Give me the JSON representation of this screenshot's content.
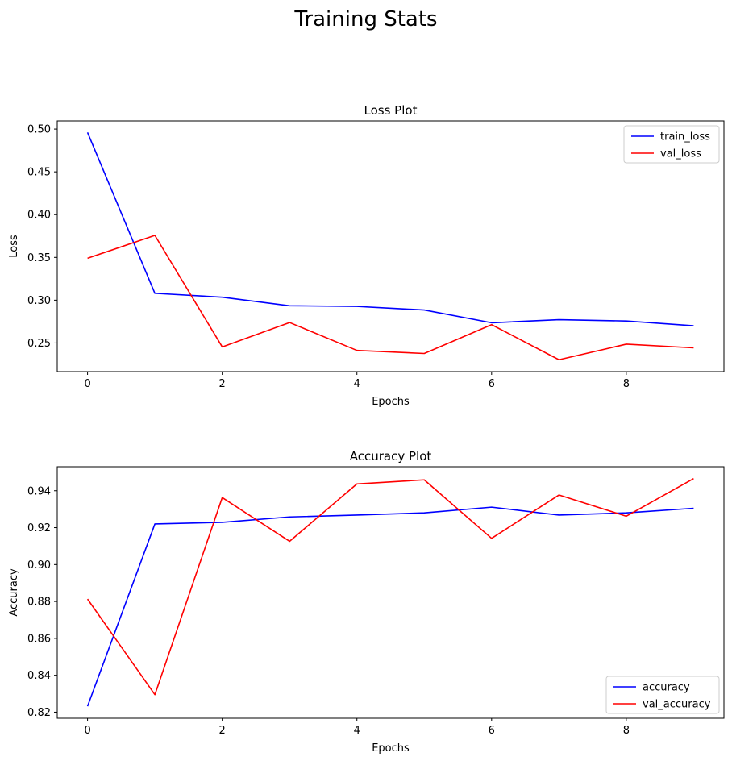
{
  "figure": {
    "title": "Training Stats"
  },
  "chart_data": [
    {
      "type": "line",
      "title": "Loss Plot",
      "xlabel": "Epochs",
      "ylabel": "Loss",
      "x": [
        0,
        1,
        2,
        3,
        4,
        5,
        6,
        7,
        8,
        9
      ],
      "xlim": [
        -0.45,
        9.45
      ],
      "ylim": [
        0.2165,
        0.5095
      ],
      "xticks": [
        0,
        2,
        4,
        6,
        8
      ],
      "yticks": [
        0.25,
        0.3,
        0.35,
        0.4,
        0.45,
        0.5
      ],
      "ytick_labels": [
        "0.25",
        "0.30",
        "0.35",
        "0.40",
        "0.45",
        "0.50"
      ],
      "legend": "top-right",
      "grid": false,
      "series": [
        {
          "name": "train_loss",
          "color": "#0000ff",
          "values": [
            0.496,
            0.308,
            0.3035,
            0.2935,
            0.2927,
            0.2885,
            0.2736,
            0.2772,
            0.2757,
            0.2701
          ]
        },
        {
          "name": "val_loss",
          "color": "#ff0000",
          "values": [
            0.349,
            0.3757,
            0.2454,
            0.2739,
            0.2413,
            0.2377,
            0.2714,
            0.2304,
            0.2486,
            0.2443
          ]
        }
      ]
    },
    {
      "type": "line",
      "title": "Accuracy Plot",
      "xlabel": "Epochs",
      "ylabel": "Accuracy",
      "x": [
        0,
        1,
        2,
        3,
        4,
        5,
        6,
        7,
        8,
        9
      ],
      "xlim": [
        -0.45,
        9.45
      ],
      "ylim": [
        0.8167,
        0.953
      ],
      "xticks": [
        0,
        2,
        4,
        6,
        8
      ],
      "yticks": [
        0.82,
        0.84,
        0.86,
        0.88,
        0.9,
        0.92,
        0.94
      ],
      "ytick_labels": [
        "0.82",
        "0.84",
        "0.86",
        "0.88",
        "0.90",
        "0.92",
        "0.94"
      ],
      "legend": "bottom-right",
      "grid": false,
      "series": [
        {
          "name": "accuracy",
          "color": "#0000ff",
          "values": [
            0.8232,
            0.922,
            0.9229,
            0.9258,
            0.9268,
            0.928,
            0.9311,
            0.9268,
            0.928,
            0.9305
          ]
        },
        {
          "name": "val_accuracy",
          "color": "#ff0000",
          "values": [
            0.8813,
            0.8295,
            0.9363,
            0.9126,
            0.9437,
            0.9459,
            0.9142,
            0.9377,
            0.9262,
            0.9466
          ]
        }
      ]
    }
  ]
}
